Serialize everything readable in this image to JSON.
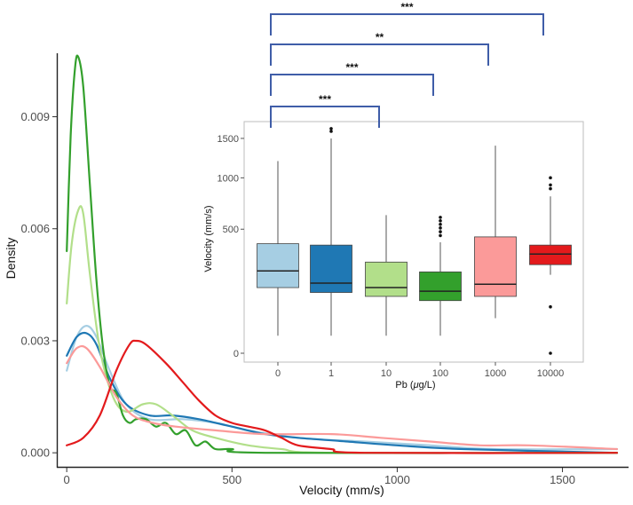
{
  "chart_data": [
    {
      "type": "line",
      "subtype": "density",
      "xlabel": "Velocity (mm/s)",
      "ylabel": "Density",
      "xlim": [
        -30,
        1700
      ],
      "ylim": [
        -0.0004,
        0.0107
      ],
      "x_ticks": [
        0,
        500,
        1000,
        1500
      ],
      "y_ticks": [
        0.0,
        0.003,
        0.006,
        0.009
      ],
      "x_tick_labels": [
        "0",
        "500",
        "1000",
        "1500"
      ],
      "y_tick_labels": [
        "0.000",
        "0.003",
        "0.006",
        "0.009"
      ],
      "grid": false,
      "series": [
        {
          "color": "#a6cee3",
          "points": [
            [
              0,
              0.0022
            ],
            [
              30,
              0.0031
            ],
            [
              60,
              0.0034
            ],
            [
              90,
              0.0031
            ],
            [
              130,
              0.0022
            ],
            [
              180,
              0.0013
            ],
            [
              250,
              0.0009
            ],
            [
              350,
              0.0009
            ],
            [
              450,
              0.0008
            ],
            [
              550,
              0.0006
            ],
            [
              700,
              0.0004
            ],
            [
              900,
              0.0003
            ],
            [
              1100,
              0.0002
            ],
            [
              1300,
              0.0001
            ],
            [
              1665,
              0.0001
            ]
          ]
        },
        {
          "color": "#1f78b4",
          "points": [
            [
              0,
              0.0026
            ],
            [
              30,
              0.0031
            ],
            [
              60,
              0.0032
            ],
            [
              90,
              0.0029
            ],
            [
              130,
              0.002
            ],
            [
              180,
              0.0013
            ],
            [
              250,
              0.001
            ],
            [
              320,
              0.001
            ],
            [
              400,
              0.0009
            ],
            [
              500,
              0.0007
            ],
            [
              600,
              0.0005
            ],
            [
              700,
              0.0004
            ],
            [
              850,
              0.0003
            ],
            [
              1000,
              0.0002
            ],
            [
              1200,
              0.0001
            ],
            [
              1665,
              0.0
            ]
          ]
        },
        {
          "color": "#b2df8a",
          "points": [
            [
              0,
              0.004
            ],
            [
              15,
              0.0056
            ],
            [
              35,
              0.0065
            ],
            [
              50,
              0.0064
            ],
            [
              70,
              0.0048
            ],
            [
              100,
              0.0028
            ],
            [
              140,
              0.0015
            ],
            [
              180,
              0.0011
            ],
            [
              230,
              0.0013
            ],
            [
              270,
              0.0013
            ],
            [
              320,
              0.001
            ],
            [
              380,
              0.0006
            ],
            [
              450,
              0.0004
            ],
            [
              550,
              0.0002
            ],
            [
              650,
              0.0001
            ],
            [
              800,
              0.0
            ],
            [
              1665,
              0.0
            ]
          ]
        },
        {
          "color": "#33a02c",
          "points": [
            [
              0,
              0.0054
            ],
            [
              12,
              0.0085
            ],
            [
              25,
              0.0103
            ],
            [
              35,
              0.0106
            ],
            [
              50,
              0.0098
            ],
            [
              70,
              0.0072
            ],
            [
              90,
              0.0046
            ],
            [
              110,
              0.0028
            ],
            [
              130,
              0.0018
            ],
            [
              150,
              0.0016
            ],
            [
              170,
              0.001
            ],
            [
              190,
              0.0008
            ],
            [
              210,
              0.0009
            ],
            [
              240,
              0.0009
            ],
            [
              270,
              0.0007
            ],
            [
              300,
              0.0008
            ],
            [
              330,
              0.0005
            ],
            [
              360,
              0.0006
            ],
            [
              390,
              0.0002
            ],
            [
              420,
              0.0003
            ],
            [
              450,
              0.0001
            ],
            [
              500,
              0.0001
            ],
            [
              600,
              0.0
            ],
            [
              1665,
              0.0
            ]
          ]
        },
        {
          "color": "#fb9a99",
          "points": [
            [
              0,
              0.0024
            ],
            [
              30,
              0.0028
            ],
            [
              60,
              0.0028
            ],
            [
              100,
              0.0023
            ],
            [
              150,
              0.0015
            ],
            [
              200,
              0.001
            ],
            [
              260,
              0.0008
            ],
            [
              330,
              0.0007
            ],
            [
              450,
              0.0006
            ],
            [
              600,
              0.0005
            ],
            [
              800,
              0.0005
            ],
            [
              950,
              0.0004
            ],
            [
              1100,
              0.0003
            ],
            [
              1250,
              0.0002
            ],
            [
              1400,
              0.0002
            ],
            [
              1665,
              0.0001
            ]
          ]
        },
        {
          "color": "#e31a1c",
          "points": [
            [
              0,
              0.0002
            ],
            [
              50,
              0.0004
            ],
            [
              100,
              0.001
            ],
            [
              150,
              0.0022
            ],
            [
              190,
              0.0029
            ],
            [
              210,
              0.003
            ],
            [
              240,
              0.0029
            ],
            [
              300,
              0.0024
            ],
            [
              350,
              0.0019
            ],
            [
              400,
              0.0014
            ],
            [
              450,
              0.001
            ],
            [
              500,
              0.0008
            ],
            [
              550,
              0.0007
            ],
            [
              600,
              0.0006
            ],
            [
              650,
              0.0004
            ],
            [
              700,
              0.0002
            ],
            [
              800,
              0.0001
            ],
            [
              900,
              0.0
            ],
            [
              1665,
              0.0
            ]
          ]
        }
      ]
    },
    {
      "type": "box",
      "xlabel_prefix": "Pb (",
      "xlabel_mu": "μ",
      "xlabel_suffix": "g/L)",
      "ylabel": "Velocity (mm/s)",
      "y_ticks": [
        0,
        500,
        1000,
        1500
      ],
      "y_tick_labels": [
        "0",
        "500",
        "1000",
        "1500"
      ],
      "categories": [
        "0",
        "1",
        "10",
        "100",
        "1000",
        "10000"
      ],
      "colors": [
        "#a6cee3",
        "#1f78b4",
        "#b2df8a",
        "#33a02c",
        "#fb9a99",
        "#e31a1c"
      ],
      "boxes": [
        {
          "whisker_low": 10,
          "q1": 140,
          "median": 220,
          "q3": 390,
          "whisker_high": 1200,
          "outliers": []
        },
        {
          "whisker_low": 10,
          "q1": 120,
          "median": 160,
          "q3": 380,
          "whisker_high": 1500,
          "outliers": [
            1600,
            1640
          ]
        },
        {
          "whisker_low": 10,
          "q1": 105,
          "median": 140,
          "q3": 270,
          "whisker_high": 620,
          "outliers": []
        },
        {
          "whisker_low": 10,
          "q1": 90,
          "median": 125,
          "q3": 215,
          "whisker_high": 400,
          "outliers": [
            450,
            480,
            510,
            540,
            570,
            600
          ]
        },
        {
          "whisker_low": 40,
          "q1": 105,
          "median": 155,
          "q3": 440,
          "whisker_high": 1400,
          "outliers": []
        },
        {
          "whisker_low": 200,
          "q1": 255,
          "median": 320,
          "q3": 380,
          "whisker_high": 800,
          "outliers": [
            70,
            0,
            880,
            920,
            1000
          ]
        }
      ],
      "significance": [
        {
          "from": "0",
          "to": "10",
          "label": "***"
        },
        {
          "from": "0",
          "to": "100",
          "label": "***"
        },
        {
          "from": "0",
          "to": "1000",
          "label": "**"
        },
        {
          "from": "0",
          "to": "10000",
          "label": "***"
        }
      ]
    }
  ]
}
